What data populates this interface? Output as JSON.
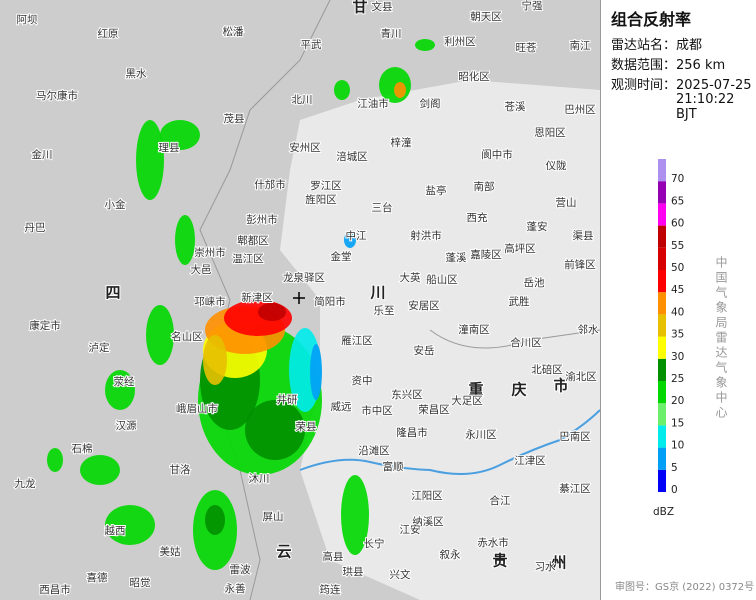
{
  "header": {
    "title": "组合反射率",
    "info": [
      {
        "label": "雷达站名：",
        "value": "成都"
      },
      {
        "label": "数据范围：",
        "value": "256 km"
      },
      {
        "label": "观测时间：",
        "value": "2025-07-25",
        "value2": "21:10:22 BJT"
      }
    ]
  },
  "legend": {
    "unit": "dBZ",
    "bins": [
      {
        "value": 0,
        "color": "#0000f6"
      },
      {
        "value": 5,
        "color": "#01a0f6"
      },
      {
        "value": 10,
        "color": "#00ecec"
      },
      {
        "value": 15,
        "color": "#6cf06c"
      },
      {
        "value": 20,
        "color": "#00d800"
      },
      {
        "value": 25,
        "color": "#019000"
      },
      {
        "value": 30,
        "color": "#ffff00"
      },
      {
        "value": 35,
        "color": "#e7c000"
      },
      {
        "value": 40,
        "color": "#ff9000"
      },
      {
        "value": 45,
        "color": "#ff0000"
      },
      {
        "value": 50,
        "color": "#d60000"
      },
      {
        "value": 55,
        "color": "#c00000"
      },
      {
        "value": 60,
        "color": "#ff00f0"
      },
      {
        "value": 65,
        "color": "#9600b4"
      },
      {
        "value": 70,
        "color": "#ad90f0"
      }
    ]
  },
  "credit": "中国气象局雷达气象中心",
  "footer": "审图号：GS京 (2022) 0372号",
  "map": {
    "regions": [
      "甘",
      "四",
      "川",
      "重",
      "庆",
      "市",
      "贵",
      "州",
      "云"
    ],
    "places": [
      "文县",
      "阿坝",
      "红原",
      "松潘",
      "平武",
      "青川",
      "利州区",
      "朝天区",
      "宁强",
      "南江",
      "旺苍",
      "马尔康市",
      "黑水",
      "北川",
      "江油市",
      "剑阁",
      "昭化区",
      "苍溪",
      "巴州区",
      "茂县",
      "安州区",
      "梓潼",
      "阆中市",
      "恩阳区",
      "金川",
      "理县",
      "涪城区",
      "盐亭",
      "南部",
      "仪陇",
      "营山",
      "小金",
      "什邡市",
      "彭州市",
      "罗江区",
      "旌阳区",
      "三台",
      "西充",
      "蓬安",
      "渠县",
      "丹巴",
      "郫都区",
      "温江区",
      "中江",
      "射洪市",
      "蓬溪",
      "嘉陵区",
      "高坪区",
      "大邑",
      "崇州市",
      "金堂",
      "龙泉驿区",
      "大英",
      "船山区",
      "岳池",
      "前锋区",
      "邛崃市",
      "新津区",
      "简阳市",
      "乐至",
      "安居区",
      "武胜",
      "邻水",
      "康定市",
      "名山区",
      "雁江区",
      "潼南区",
      "合川区",
      "安岳",
      "资中",
      "东兴区",
      "大足区",
      "北碚区",
      "渝北区",
      "荥经",
      "汉源",
      "石棉",
      "九龙",
      "井研",
      "威远",
      "市中区",
      "荣县",
      "隆昌市",
      "永川区",
      "荣昌区",
      "巴南区",
      "江津区",
      "富顺",
      "沿滩区",
      "江阳区",
      "纳溪区",
      "合江",
      "綦江区",
      "长宁",
      "高县",
      "珙县",
      "兴文",
      "赤水市",
      "习水",
      "越西",
      "美姑",
      "喜德",
      "昭觉",
      "屏山",
      "永善",
      "筠连",
      "泸定",
      "峨眉山市",
      "沐川",
      "甘洛",
      "雷波",
      "江安",
      "叙永",
      "西昌市"
    ]
  }
}
